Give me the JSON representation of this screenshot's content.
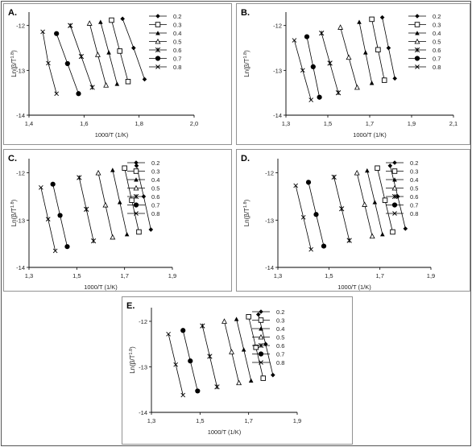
{
  "legend_labels": [
    "0.2",
    "0.3",
    "0.4",
    "0.5",
    "0.6",
    "0.7",
    "0.8"
  ],
  "chart_data": [
    {
      "panel": "A.",
      "type": "line",
      "xlabel": "1000/T (1/K)",
      "ylabel": "Ln(β/T^1.8)",
      "xlim": [
        1.4,
        2.0
      ],
      "ylim": [
        -14,
        -11.7
      ],
      "xticks": [
        "1,4",
        "1,6",
        "1,8",
        "2,0"
      ],
      "yticks": [
        "-12",
        "-13",
        "-14"
      ],
      "legend_position": "top-right",
      "series": [
        {
          "name": "0.2",
          "marker": "diamond",
          "x": [
            1.74,
            1.78,
            1.82
          ],
          "y": [
            -11.85,
            -12.5,
            -13.2
          ]
        },
        {
          "name": "0.3",
          "marker": "square-open",
          "x": [
            1.7,
            1.73,
            1.76
          ],
          "y": [
            -11.88,
            -12.57,
            -13.25
          ]
        },
        {
          "name": "0.4",
          "marker": "triangle",
          "x": [
            1.66,
            1.69,
            1.72
          ],
          "y": [
            -11.92,
            -12.6,
            -13.3
          ]
        },
        {
          "name": "0.5",
          "marker": "triangle-open",
          "x": [
            1.62,
            1.65,
            1.68
          ],
          "y": [
            -11.95,
            -12.65,
            -13.33
          ]
        },
        {
          "name": "0.6",
          "marker": "asterisk",
          "x": [
            1.55,
            1.59,
            1.63
          ],
          "y": [
            -12.0,
            -12.69,
            -13.38
          ]
        },
        {
          "name": "0.7",
          "marker": "circle",
          "x": [
            1.5,
            1.54,
            1.58
          ],
          "y": [
            -12.18,
            -12.85,
            -13.52
          ]
        },
        {
          "name": "0.8",
          "marker": "x",
          "x": [
            1.45,
            1.47,
            1.5
          ],
          "y": [
            -12.14,
            -12.84,
            -13.52
          ]
        }
      ]
    },
    {
      "panel": "B.",
      "type": "line",
      "xlabel": "1000/T (1/K)",
      "ylabel": "Ln(β/T^1.8)",
      "xlim": [
        1.3,
        2.1
      ],
      "ylim": [
        -14,
        -11.7
      ],
      "xticks": [
        "1,3",
        "1,5",
        "1,7",
        "1,9",
        "2,1"
      ],
      "yticks": [
        "-12",
        "-13",
        "-14"
      ],
      "legend_position": "top-right",
      "series": [
        {
          "name": "0.2",
          "marker": "diamond",
          "x": [
            1.76,
            1.79,
            1.82
          ],
          "y": [
            -11.82,
            -12.5,
            -13.18
          ]
        },
        {
          "name": "0.3",
          "marker": "square-open",
          "x": [
            1.71,
            1.74,
            1.77
          ],
          "y": [
            -11.86,
            -12.54,
            -13.22
          ]
        },
        {
          "name": "0.4",
          "marker": "triangle",
          "x": [
            1.65,
            1.68,
            1.71
          ],
          "y": [
            -11.92,
            -12.6,
            -13.28
          ]
        },
        {
          "name": "0.5",
          "marker": "triangle-open",
          "x": [
            1.56,
            1.6,
            1.64
          ],
          "y": [
            -12.04,
            -12.71,
            -13.38
          ]
        },
        {
          "name": "0.6",
          "marker": "asterisk",
          "x": [
            1.47,
            1.51,
            1.55
          ],
          "y": [
            -12.17,
            -12.84,
            -13.5
          ]
        },
        {
          "name": "0.7",
          "marker": "circle",
          "x": [
            1.4,
            1.43,
            1.46
          ],
          "y": [
            -12.25,
            -12.92,
            -13.6
          ]
        },
        {
          "name": "0.8",
          "marker": "x",
          "x": [
            1.34,
            1.38,
            1.42
          ],
          "y": [
            -12.33,
            -13.0,
            -13.66
          ]
        }
      ]
    },
    {
      "panel": "C.",
      "type": "line",
      "xlabel": "1000/T (1/K)",
      "ylabel": "Ln(β/T^1.8)",
      "xlim": [
        1.3,
        1.9
      ],
      "ylim": [
        -14,
        -11.7
      ],
      "xticks": [
        "1,3",
        "1,5",
        "1,7",
        "1,9"
      ],
      "yticks": [
        "-12",
        "-13",
        "-14"
      ],
      "legend_position": "top-right",
      "series": [
        {
          "name": "0.2",
          "marker": "diamond",
          "x": [
            1.75,
            1.78,
            1.81
          ],
          "y": [
            -11.85,
            -12.5,
            -13.2
          ]
        },
        {
          "name": "0.3",
          "marker": "square-open",
          "x": [
            1.7,
            1.73,
            1.76
          ],
          "y": [
            -11.9,
            -12.58,
            -13.25
          ]
        },
        {
          "name": "0.4",
          "marker": "triangle",
          "x": [
            1.65,
            1.68,
            1.71
          ],
          "y": [
            -11.94,
            -12.62,
            -13.3
          ]
        },
        {
          "name": "0.5",
          "marker": "triangle-open",
          "x": [
            1.59,
            1.62,
            1.65
          ],
          "y": [
            -12.0,
            -12.68,
            -13.36
          ]
        },
        {
          "name": "0.6",
          "marker": "asterisk",
          "x": [
            1.51,
            1.54,
            1.57
          ],
          "y": [
            -12.1,
            -12.77,
            -13.44
          ]
        },
        {
          "name": "0.7",
          "marker": "circle",
          "x": [
            1.4,
            1.43,
            1.46
          ],
          "y": [
            -12.24,
            -12.9,
            -13.56
          ]
        },
        {
          "name": "0.8",
          "marker": "x",
          "x": [
            1.35,
            1.38,
            1.41
          ],
          "y": [
            -12.31,
            -12.98,
            -13.65
          ]
        }
      ]
    },
    {
      "panel": "D.",
      "type": "line",
      "xlabel": "1000/T (1/K)",
      "ylabel": "Ln(β/T^1.8)",
      "xlim": [
        1.3,
        1.9
      ],
      "ylim": [
        -14,
        -11.7
      ],
      "xticks": [
        "1,3",
        "1,5",
        "1,7",
        "1,9"
      ],
      "yticks": [
        "-12",
        "-13",
        "-14"
      ],
      "legend_position": "top-right",
      "series": [
        {
          "name": "0.2",
          "marker": "diamond",
          "x": [
            1.74,
            1.77,
            1.8
          ],
          "y": [
            -11.85,
            -12.5,
            -13.18
          ]
        },
        {
          "name": "0.3",
          "marker": "square-open",
          "x": [
            1.69,
            1.72,
            1.75
          ],
          "y": [
            -11.9,
            -12.58,
            -13.25
          ]
        },
        {
          "name": "0.4",
          "marker": "triangle",
          "x": [
            1.65,
            1.68,
            1.71
          ],
          "y": [
            -11.95,
            -12.62,
            -13.3
          ]
        },
        {
          "name": "0.5",
          "marker": "triangle-open",
          "x": [
            1.61,
            1.64,
            1.67
          ],
          "y": [
            -12.0,
            -12.67,
            -13.34
          ]
        },
        {
          "name": "0.6",
          "marker": "asterisk",
          "x": [
            1.52,
            1.55,
            1.58
          ],
          "y": [
            -12.09,
            -12.76,
            -13.43
          ]
        },
        {
          "name": "0.7",
          "marker": "circle",
          "x": [
            1.42,
            1.45,
            1.48
          ],
          "y": [
            -12.2,
            -12.88,
            -13.55
          ]
        },
        {
          "name": "0.8",
          "marker": "x",
          "x": [
            1.37,
            1.4,
            1.43
          ],
          "y": [
            -12.27,
            -12.94,
            -13.62
          ]
        }
      ]
    },
    {
      "panel": "E.",
      "type": "line",
      "xlabel": "1000/T (1/K)",
      "ylabel": "Ln(β/T^1.8)",
      "xlim": [
        1.3,
        1.9
      ],
      "ylim": [
        -14,
        -11.7
      ],
      "xticks": [
        "1,3",
        "1,5",
        "1,7",
        "1,9"
      ],
      "yticks": [
        "-12",
        "-13",
        "-14"
      ],
      "legend_position": "top-right",
      "series": [
        {
          "name": "0.2",
          "marker": "diamond",
          "x": [
            1.74,
            1.77,
            1.8
          ],
          "y": [
            -11.85,
            -12.5,
            -13.18
          ]
        },
        {
          "name": "0.3",
          "marker": "square-open",
          "x": [
            1.7,
            1.73,
            1.76
          ],
          "y": [
            -11.9,
            -12.57,
            -13.25
          ]
        },
        {
          "name": "0.4",
          "marker": "triangle",
          "x": [
            1.65,
            1.68,
            1.71
          ],
          "y": [
            -11.95,
            -12.62,
            -13.3
          ]
        },
        {
          "name": "0.5",
          "marker": "triangle-open",
          "x": [
            1.6,
            1.63,
            1.66
          ],
          "y": [
            -12.0,
            -12.67,
            -13.35
          ]
        },
        {
          "name": "0.6",
          "marker": "asterisk",
          "x": [
            1.51,
            1.54,
            1.57
          ],
          "y": [
            -12.1,
            -12.77,
            -13.44
          ]
        },
        {
          "name": "0.7",
          "marker": "circle",
          "x": [
            1.43,
            1.46,
            1.49
          ],
          "y": [
            -12.2,
            -12.87,
            -13.53
          ]
        },
        {
          "name": "0.8",
          "marker": "x",
          "x": [
            1.37,
            1.4,
            1.43
          ],
          "y": [
            -12.28,
            -12.95,
            -13.62
          ]
        }
      ]
    }
  ]
}
